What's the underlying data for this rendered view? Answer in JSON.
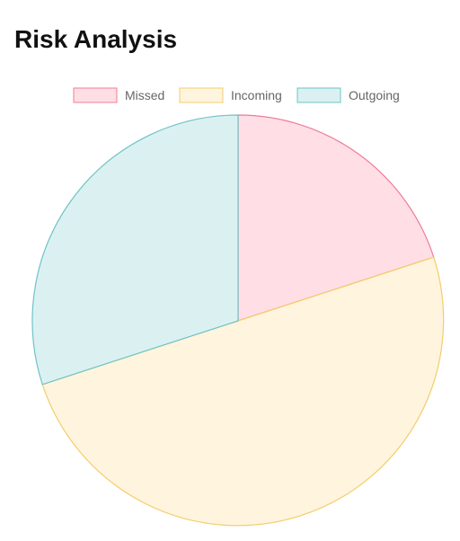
{
  "page": {
    "title": "Risk Analysis"
  },
  "chart_data": {
    "type": "pie",
    "title": "",
    "legend_position": "top",
    "start_angle_degrees": 0,
    "direction": "clockwise",
    "series": [
      {
        "name": "Missed",
        "value": 20,
        "fill_color": "#ffdfe5",
        "stroke_color": "#f07c97"
      },
      {
        "name": "Incoming",
        "value": 50,
        "fill_color": "#fff4de",
        "stroke_color": "#f4cd69"
      },
      {
        "name": "Outgoing",
        "value": 30,
        "fill_color": "#dbf1f1",
        "stroke_color": "#6ec3c8"
      }
    ]
  }
}
